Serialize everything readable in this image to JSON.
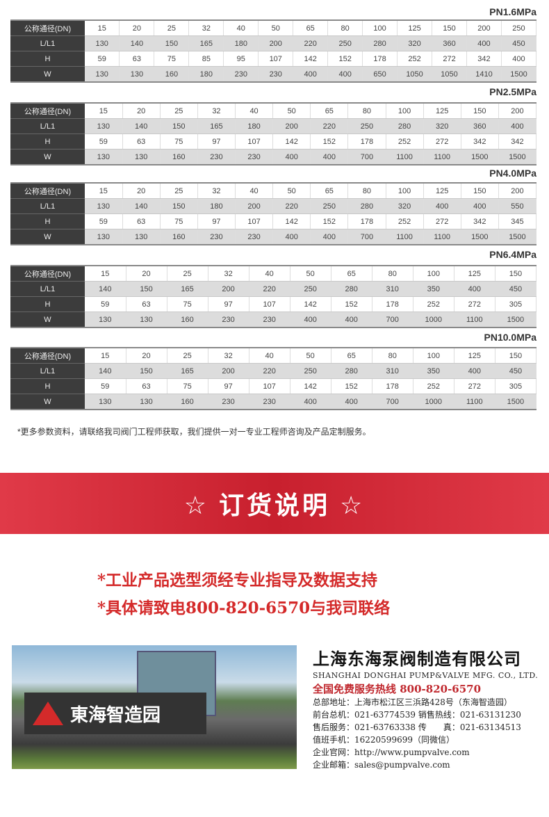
{
  "tables": [
    {
      "title": "PN1.6MPa",
      "rows": [
        {
          "label": "公称通径(DN)",
          "values": [
            "15",
            "20",
            "25",
            "32",
            "40",
            "50",
            "65",
            "80",
            "100",
            "125",
            "150",
            "200",
            "250"
          ]
        },
        {
          "label": "L/L1",
          "values": [
            "130",
            "140",
            "150",
            "165",
            "180",
            "200",
            "220",
            "250",
            "280",
            "320",
            "360",
            "400",
            "450"
          ]
        },
        {
          "label": "H",
          "values": [
            "59",
            "63",
            "75",
            "85",
            "95",
            "107",
            "142",
            "152",
            "178",
            "252",
            "272",
            "342",
            "400"
          ]
        },
        {
          "label": "W",
          "values": [
            "130",
            "130",
            "160",
            "180",
            "230",
            "230",
            "400",
            "400",
            "650",
            "1050",
            "1050",
            "1410",
            "1500"
          ]
        }
      ]
    },
    {
      "title": "PN2.5MPa",
      "rows": [
        {
          "label": "公称通径(DN)",
          "values": [
            "15",
            "20",
            "25",
            "32",
            "40",
            "50",
            "65",
            "80",
            "100",
            "125",
            "150",
            "200"
          ]
        },
        {
          "label": "L/L1",
          "values": [
            "130",
            "140",
            "150",
            "165",
            "180",
            "200",
            "220",
            "250",
            "280",
            "320",
            "360",
            "400"
          ]
        },
        {
          "label": "H",
          "values": [
            "59",
            "63",
            "75",
            "97",
            "107",
            "142",
            "152",
            "178",
            "252",
            "272",
            "342",
            "342"
          ]
        },
        {
          "label": "W",
          "values": [
            "130",
            "130",
            "160",
            "230",
            "230",
            "400",
            "400",
            "700",
            "1100",
            "1100",
            "1500",
            "1500"
          ]
        }
      ]
    },
    {
      "title": "PN4.0MPa",
      "rows": [
        {
          "label": "公称通径(DN)",
          "values": [
            "15",
            "20",
            "25",
            "32",
            "40",
            "50",
            "65",
            "80",
            "100",
            "125",
            "150",
            "200"
          ]
        },
        {
          "label": "L/L1",
          "values": [
            "130",
            "140",
            "150",
            "180",
            "200",
            "220",
            "250",
            "280",
            "320",
            "400",
            "400",
            "550"
          ]
        },
        {
          "label": "H",
          "values": [
            "59",
            "63",
            "75",
            "97",
            "107",
            "142",
            "152",
            "178",
            "252",
            "272",
            "342",
            "345"
          ]
        },
        {
          "label": "W",
          "values": [
            "130",
            "130",
            "160",
            "230",
            "230",
            "400",
            "400",
            "700",
            "1100",
            "1100",
            "1500",
            "1500"
          ]
        }
      ]
    },
    {
      "title": "PN6.4MPa",
      "rows": [
        {
          "label": "公称通径(DN)",
          "values": [
            "15",
            "20",
            "25",
            "32",
            "40",
            "50",
            "65",
            "80",
            "100",
            "125",
            "150"
          ]
        },
        {
          "label": "L/L1",
          "values": [
            "140",
            "150",
            "165",
            "200",
            "220",
            "250",
            "280",
            "310",
            "350",
            "400",
            "450"
          ]
        },
        {
          "label": "H",
          "values": [
            "59",
            "63",
            "75",
            "97",
            "107",
            "142",
            "152",
            "178",
            "252",
            "272",
            "305"
          ]
        },
        {
          "label": "W",
          "values": [
            "130",
            "130",
            "160",
            "230",
            "230",
            "400",
            "400",
            "700",
            "1000",
            "1100",
            "1500"
          ]
        }
      ]
    },
    {
      "title": "PN10.0MPa",
      "rows": [
        {
          "label": "公称通径(DN)",
          "values": [
            "15",
            "20",
            "25",
            "32",
            "40",
            "50",
            "65",
            "80",
            "100",
            "125",
            "150"
          ]
        },
        {
          "label": "L/L1",
          "values": [
            "140",
            "150",
            "165",
            "200",
            "220",
            "250",
            "280",
            "310",
            "350",
            "400",
            "450"
          ]
        },
        {
          "label": "H",
          "values": [
            "59",
            "63",
            "75",
            "97",
            "107",
            "142",
            "152",
            "178",
            "252",
            "272",
            "305"
          ]
        },
        {
          "label": "W",
          "values": [
            "130",
            "130",
            "160",
            "230",
            "230",
            "400",
            "400",
            "700",
            "1000",
            "1100",
            "1500"
          ]
        }
      ]
    }
  ],
  "note": "*更多参数资料，请联络我司阀门工程师获取，我们提供一对一专业工程师咨询及产品定制服务。",
  "banner": "☆ 订货说明 ☆",
  "red_lines": [
    "*工业产品选型须经专业指导及数据支持",
    "*具体请致电800-820-6570与我司联络"
  ],
  "photo_sign": "東海智造园",
  "company": {
    "name_cn": "上海东海泵阀制造有限公司",
    "name_en": "SHANGHAI DONGHAI PUMP&VALVE MFG. CO., LTD.",
    "hotline": "全国免费服务热线  800-820-6570",
    "lines": [
      "总部地址：上海市松江区三浜路428号（东海智造园）",
      "前台总机：021-63774539   销售热线：021-63131230",
      "售后服务：021-63763338   传　　真：021-63134513",
      "值班手机：16220599699（同微信）",
      "企业官网：http://www.pumpvalve.com",
      "企业邮箱：sales@pumpvalve.com"
    ]
  },
  "colors": {
    "accent_red": "#d42a2a",
    "header_dark": "#3c3c3c"
  }
}
